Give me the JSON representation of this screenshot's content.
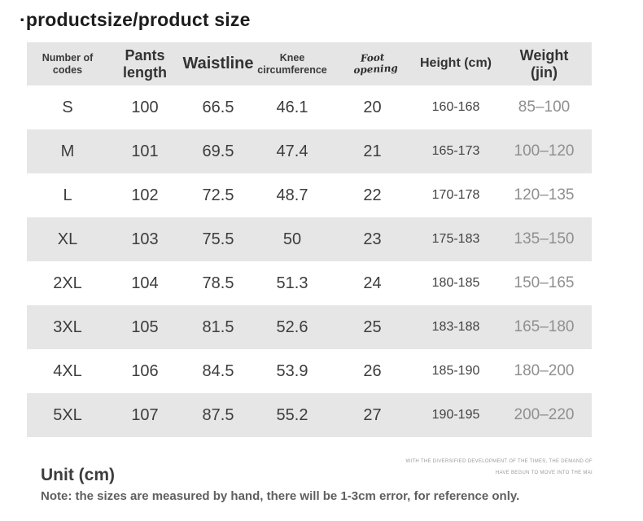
{
  "title": "·productsize/product size",
  "chart_data": {
    "type": "table",
    "title": "productsize/product size",
    "columns": [
      "Number of codes",
      "Pants length",
      "Waistline",
      "Knee circumference",
      "Foot opening",
      "Height (cm)",
      "Weight (jin)"
    ],
    "rows": [
      [
        "S",
        "100",
        "66.5",
        "46.1",
        "20",
        "160-168",
        "85–100"
      ],
      [
        "M",
        "101",
        "69.5",
        "47.4",
        "21",
        "165-173",
        "100–120"
      ],
      [
        "L",
        "102",
        "72.5",
        "48.7",
        "22",
        "170-178",
        "120–135"
      ],
      [
        "XL",
        "103",
        "75.5",
        "50",
        "23",
        "175-183",
        "135–150"
      ],
      [
        "2XL",
        "104",
        "78.5",
        "51.3",
        "24",
        "180-185",
        "150–165"
      ],
      [
        "3XL",
        "105",
        "81.5",
        "52.6",
        "25",
        "183-188",
        "165–180"
      ],
      [
        "4XL",
        "106",
        "84.5",
        "53.9",
        "26",
        "185-190",
        "180–200"
      ],
      [
        "5XL",
        "107",
        "87.5",
        "55.2",
        "27",
        "190-195",
        "200–220"
      ]
    ],
    "units": "cm"
  },
  "footer": {
    "unit_label": "Unit (cm)",
    "note": "Note: the sizes are measured by hand, there will be 1-3cm error, for reference only.",
    "watermark_line1": "WITH THE DIVERSIFIED DEVELOPMENT OF THE TIMES, THE DEMAND OF",
    "watermark_line2": "HAVE BEGUN TO MOVE INTO THE MAI"
  },
  "colors": {
    "stripe_bg": "#e6e6e6",
    "header_bg": "#e5e5e5",
    "weight_text": "#8f8f8f",
    "title_text": "#1c1c1c"
  }
}
